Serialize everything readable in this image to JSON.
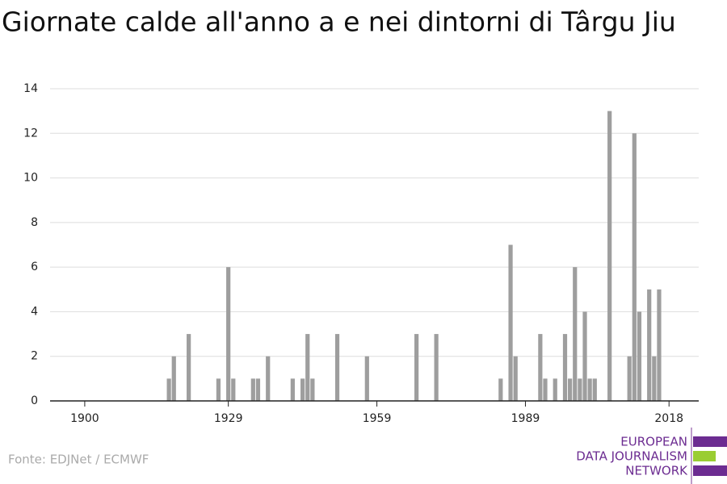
{
  "chart_data": {
    "type": "bar",
    "title": "Giornate calde all'anno a e nei dintorni di Târgu Jiu",
    "source": "Fonte: EDJNet / ECMWF",
    "logo": [
      "EUROPEAN",
      "DATA JOURNALISM",
      "NETWORK"
    ],
    "color": "#9e9e9e",
    "x": [
      1917,
      1918,
      1921,
      1927,
      1929,
      1930,
      1934,
      1935,
      1937,
      1942,
      1944,
      1945,
      1946,
      1951,
      1957,
      1967,
      1971,
      1984,
      1986,
      1987,
      1992,
      1993,
      1995,
      1997,
      1998,
      1999,
      2000,
      2001,
      2002,
      2003,
      2006,
      2010,
      2011,
      2012,
      2014,
      2015,
      2016
    ],
    "values": [
      1,
      2,
      3,
      1,
      6,
      1,
      1,
      1,
      2,
      1,
      1,
      3,
      1,
      3,
      2,
      3,
      3,
      1,
      7,
      2,
      3,
      1,
      1,
      3,
      1,
      6,
      1,
      4,
      1,
      1,
      13,
      2,
      12,
      4,
      5,
      2,
      5
    ],
    "xlim": [
      1893,
      2024
    ],
    "xticks": [
      1900,
      1929,
      1959,
      1989,
      2018
    ],
    "ylim": [
      0,
      14
    ],
    "yticks": [
      0,
      2,
      4,
      6,
      8,
      10,
      12,
      14
    ],
    "grid": true
  }
}
